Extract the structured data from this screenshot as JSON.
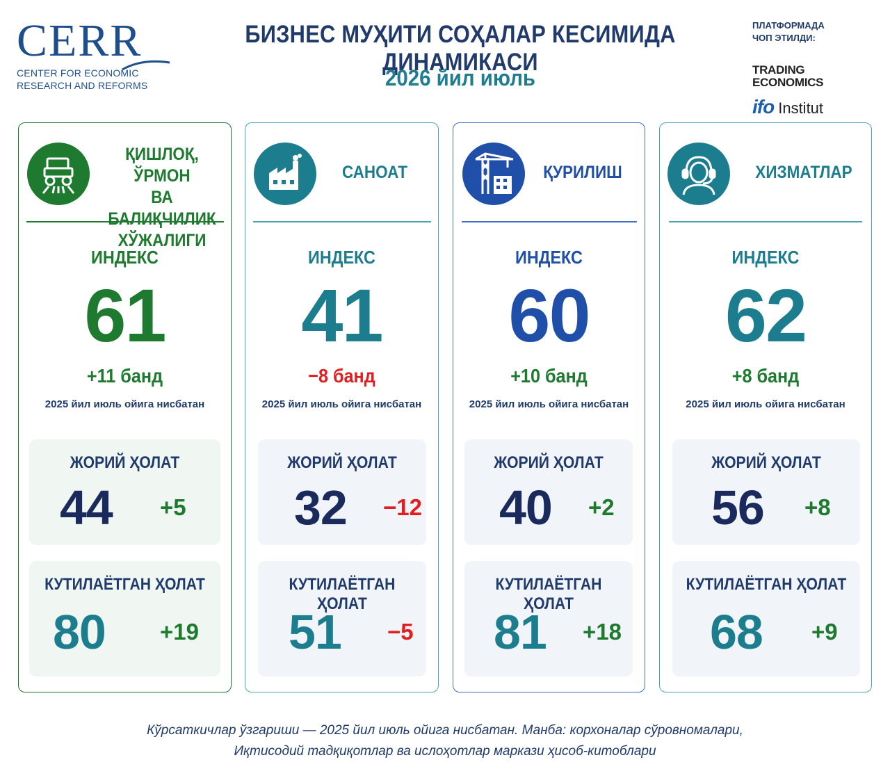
{
  "header": {
    "logo_word": "CERR",
    "logo_line1": "CENTER FOR ECONOMIC",
    "logo_line2": "RESEARCH AND REFORMS",
    "title": "БИЗНЕС МУҲИТИ СОҲАЛАР КЕСИМИДА ДИНАМИКАСИ",
    "subtitle": "2026 йил июль",
    "platform_line1": "ПЛАТФОРМАДА",
    "platform_line2": "ЧОП ЭТИЛДИ:",
    "te_line1": "TRADING",
    "te_line2": "ECONOMICS",
    "ifo_mark": "ifo",
    "ifo_text": "Institut"
  },
  "colors": {
    "green": "#1e7a2e",
    "teal": "#1b7d8e",
    "blue": "#1f4fa8",
    "navy": "#1b2a5c",
    "red": "#e02020"
  },
  "sectors": [
    {
      "icon": "tractor-icon",
      "name_lines": [
        "ҚИШЛОҚ, ЎРМОН",
        "ВА БАЛИҚЧИЛИК",
        "ХЎЖАЛИГИ"
      ],
      "index_label": "ИНДЕКС",
      "index_value": "61",
      "index_delta": "+11 банд",
      "index_note": "2025 йил июль ойига нисбатан",
      "current_label": "ЖОРИЙ ҲОЛАТ",
      "current_value": "44",
      "current_delta": "+5",
      "expected_label": "КУТИЛАЁТГАН ҲОЛАТ",
      "expected_value": "80",
      "expected_delta": "+19"
    },
    {
      "icon": "factory-icon",
      "name_lines": [
        "САНОАТ"
      ],
      "index_label": "ИНДЕКС",
      "index_value": "41",
      "index_delta": "−8 банд",
      "index_note": "2025 йил июль ойига нисбатан",
      "current_label": "ЖОРИЙ ҲОЛАТ",
      "current_value": "32",
      "current_delta": "−12",
      "expected_label": "КУТИЛАЁТГАН ҲОЛАТ",
      "expected_value": "51",
      "expected_delta": "−5"
    },
    {
      "icon": "crane-icon",
      "name_lines": [
        "ҚУРИЛИШ"
      ],
      "index_label": "ИНДЕКС",
      "index_value": "60",
      "index_delta": "+10 банд",
      "index_note": "2025 йил июль ойига нисбатан",
      "current_label": "ЖОРИЙ ҲОЛАТ",
      "current_value": "40",
      "current_delta": "+2",
      "expected_label": "КУТИЛАЁТГАН ҲОЛАТ",
      "expected_value": "81",
      "expected_delta": "+18"
    },
    {
      "icon": "headset-operator-icon",
      "name_lines": [
        "ХИЗМАТЛАР"
      ],
      "index_label": "ИНДЕКС",
      "index_value": "62",
      "index_delta": "+8 банд",
      "index_note": "2025 йил июль ойига нисбатан",
      "current_label": "ЖОРИЙ ҲОЛАТ",
      "current_value": "56",
      "current_delta": "+8",
      "expected_label": "КУТИЛАЁТГАН ҲОЛАТ",
      "expected_value": "68",
      "expected_delta": "+9"
    }
  ],
  "footer": {
    "line1": "Кўрсаткичлар ўзгариши — 2025 йил июль ойига нисбатан. Манба: корхоналар сўровномалари,",
    "line2": "Иқтисодий тадқиқотлар ва ислоҳотлар маркази ҳисоб-китоблари"
  }
}
